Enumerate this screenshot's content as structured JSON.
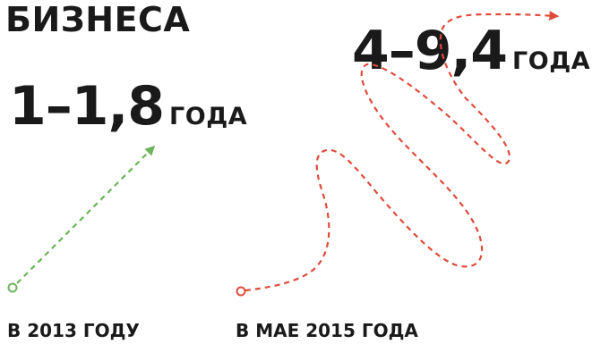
{
  "heading": "БИЗНЕСА",
  "left_block": {
    "value": "1–1,8",
    "unit": "ГОДА",
    "caption": "В 2013 ГОДУ",
    "color": "#6cb35a"
  },
  "right_block": {
    "value": "4–9,4",
    "unit": "ГОДА",
    "caption": "В МАЕ 2015 ГОДА",
    "color": "#e04a3a"
  },
  "icons": {
    "left_arrow": "dashed-arrow-icon",
    "right_arrow": "winding-dashed-arrow-icon"
  }
}
